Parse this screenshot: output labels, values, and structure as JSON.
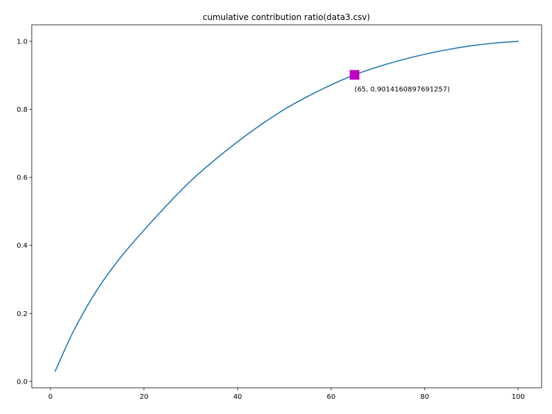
{
  "chart_data": {
    "type": "line",
    "title": "cumulative contribution ratio(data3.csv)",
    "xlabel": "",
    "ylabel": "",
    "xlim": [
      -4.0,
      105.0
    ],
    "ylim": [
      -0.0185,
      1.0485
    ],
    "xticks": [
      0,
      20,
      40,
      60,
      80,
      100
    ],
    "xtick_labels": [
      "0",
      "20",
      "40",
      "60",
      "80",
      "100"
    ],
    "yticks": [
      0.0,
      0.2,
      0.4,
      0.6,
      0.8,
      1.0
    ],
    "ytick_labels": [
      "0.0",
      "0.2",
      "0.4",
      "0.6",
      "0.8",
      "1.0"
    ],
    "grid": false,
    "series": [
      {
        "color": "#1f77b4",
        "x": [
          1,
          5,
          10,
          15,
          20,
          25,
          30,
          35,
          40,
          45,
          50,
          55,
          60,
          65,
          70,
          75,
          80,
          85,
          90,
          95,
          100
        ],
        "y": [
          0.03,
          0.15,
          0.27,
          0.365,
          0.445,
          0.52,
          0.59,
          0.65,
          0.705,
          0.755,
          0.8,
          0.838,
          0.872,
          0.9014160897691257,
          0.925,
          0.945,
          0.962,
          0.976,
          0.987,
          0.995,
          1.0
        ]
      }
    ],
    "highlight": {
      "x": 65,
      "y": 0.9014160897691257,
      "marker": "square",
      "color": "#bf00bf",
      "label": "(65, 0.9014160897691257)"
    }
  }
}
